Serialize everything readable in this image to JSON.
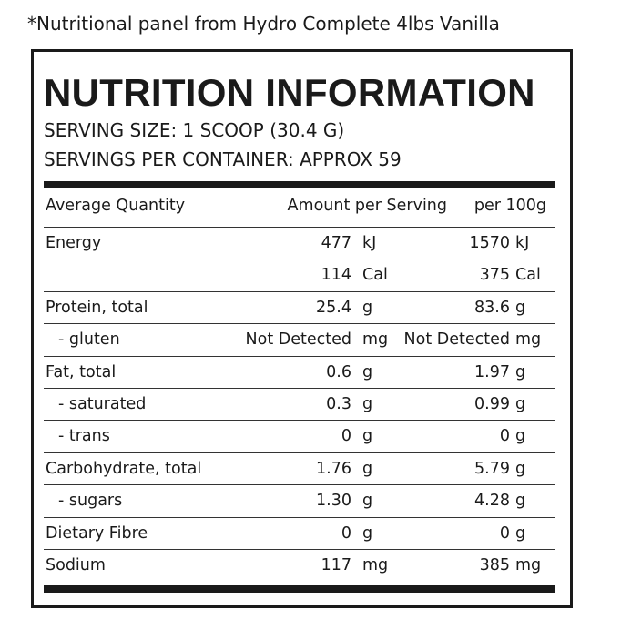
{
  "caption": "*Nutritional panel from Hydro Complete 4lbs Vanilla",
  "panel": {
    "title": "NUTRITION INFORMATION",
    "serving_size": "SERVING SIZE: 1 SCOOP (30.4 G)",
    "servings_per_container": "SERVINGS PER CONTAINER:  APPROX 59"
  },
  "table": {
    "columns": [
      "Average Quantity",
      "Amount per Serving",
      "per 100g"
    ],
    "rows": [
      {
        "name": "Energy",
        "amount": "477",
        "unit": "kJ",
        "per100": "1570",
        "per100_unit": "kJ"
      },
      {
        "amount": "114",
        "unit": "Cal",
        "per100": "375",
        "per100_unit": "Cal"
      },
      {
        "name": "Protein, total",
        "amount": "25.4",
        "unit": "g",
        "per100": "83.6",
        "per100_unit": "g"
      },
      {
        "name": "- gluten",
        "amount": "Not Detected",
        "unit": "mg",
        "per100": "Not Detected",
        "per100_unit": "mg"
      },
      {
        "name": "Fat, total",
        "amount": "0.6",
        "unit": "g",
        "per100": "1.97",
        "per100_unit": "g"
      },
      {
        "name": "- saturated",
        "amount": "0.3",
        "unit": "g",
        "per100": "0.99",
        "per100_unit": "g"
      },
      {
        "name": "- trans",
        "amount": "0",
        "unit": "g",
        "per100": "0",
        "per100_unit": "g"
      },
      {
        "name": "Carbohydrate, total",
        "amount": "1.76",
        "unit": "g",
        "per100": "5.79",
        "per100_unit": "g"
      },
      {
        "name": "- sugars",
        "amount": "1.30",
        "unit": "g",
        "per100": "4.28",
        "per100_unit": "g"
      },
      {
        "name": "Dietary Fibre",
        "amount": "0",
        "unit": "g",
        "per100": "0",
        "per100_unit": "g"
      },
      {
        "name": "Sodium",
        "amount": "117",
        "unit": "mg",
        "per100": "385",
        "per100_unit": "mg"
      }
    ]
  }
}
